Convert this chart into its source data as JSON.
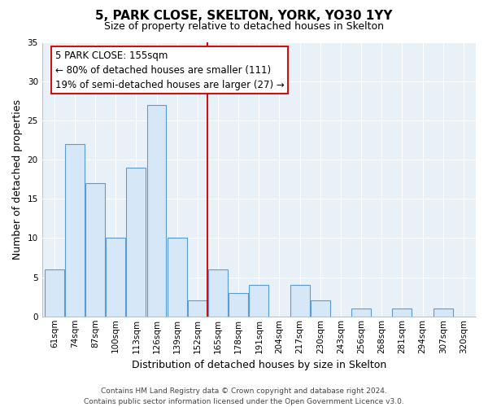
{
  "title": "5, PARK CLOSE, SKELTON, YORK, YO30 1YY",
  "subtitle": "Size of property relative to detached houses in Skelton",
  "xlabel": "Distribution of detached houses by size in Skelton",
  "ylabel": "Number of detached properties",
  "bar_labels": [
    "61sqm",
    "74sqm",
    "87sqm",
    "100sqm",
    "113sqm",
    "126sqm",
    "139sqm",
    "152sqm",
    "165sqm",
    "178sqm",
    "191sqm",
    "204sqm",
    "217sqm",
    "230sqm",
    "243sqm",
    "256sqm",
    "268sqm",
    "281sqm",
    "294sqm",
    "307sqm",
    "320sqm"
  ],
  "bar_values": [
    6,
    22,
    17,
    10,
    19,
    27,
    10,
    2,
    6,
    3,
    4,
    0,
    4,
    2,
    0,
    1,
    0,
    1,
    0,
    1,
    0
  ],
  "bar_color": "#d6e8f7",
  "bar_edge_color": "#5b9bd5",
  "vline_x_index": 7.5,
  "vline_color": "#cc1111",
  "ylim": [
    0,
    35
  ],
  "yticks": [
    0,
    5,
    10,
    15,
    20,
    25,
    30,
    35
  ],
  "annotation_title": "5 PARK CLOSE: 155sqm",
  "annotation_line1": "← 80% of detached houses are smaller (111)",
  "annotation_line2": "19% of semi-detached houses are larger (27) →",
  "annotation_box_facecolor": "#ffffff",
  "annotation_box_edgecolor": "#cc1111",
  "footer_line1": "Contains HM Land Registry data © Crown copyright and database right 2024.",
  "footer_line2": "Contains public sector information licensed under the Open Government Licence v3.0.",
  "bg_color": "#ffffff",
  "plot_bg_color": "#e8f0f8",
  "grid_color": "#ffffff",
  "title_fontsize": 11,
  "subtitle_fontsize": 9,
  "ylabel_fontsize": 9,
  "xlabel_fontsize": 9,
  "tick_fontsize": 7.5,
  "annotation_fontsize": 8.5,
  "footer_fontsize": 6.5
}
